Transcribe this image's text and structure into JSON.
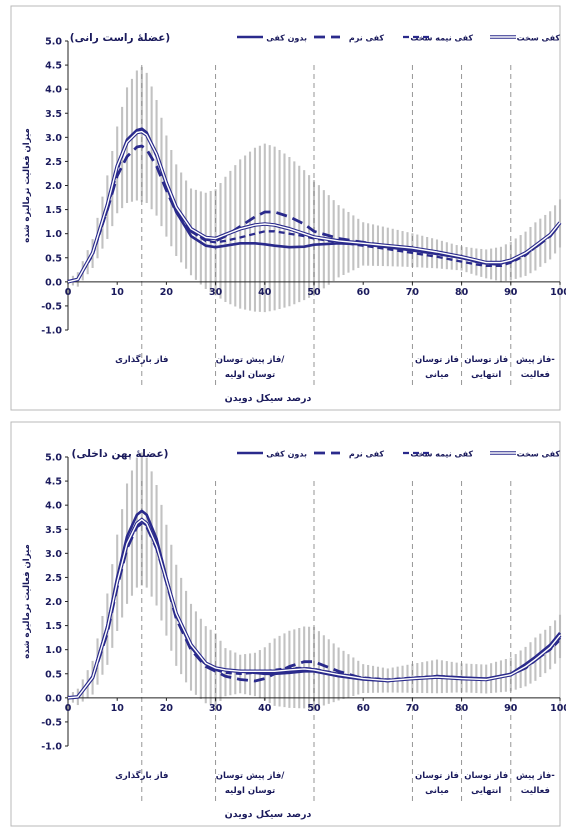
{
  "colors": {
    "series": "#2a2a8c",
    "errorbar": "#b3b3b3",
    "phase_divider": "#8a8a8a",
    "text": "#1a1a5c"
  },
  "chart_data": [
    {
      "type": "line",
      "title": "(عضلهٔ راست رانی)",
      "xlabel": "درصد سیکل دویدن",
      "ylabel": "میزان فعالیت نرمالیزه شده",
      "xlim": [
        0,
        100
      ],
      "ylim": [
        -1.0,
        5.0
      ],
      "x_ticks": [
        "0",
        "10",
        "20",
        "30",
        "40",
        "50",
        "60",
        "70",
        "80",
        "90",
        "100"
      ],
      "y_ticks": [
        "5.0",
        "4.5",
        "4.0",
        "3.5",
        "3.0",
        "2.5",
        "2.0",
        "1.5",
        "1.0",
        "0.5",
        "0.0",
        "-0.5",
        "-1.0"
      ],
      "phase_dividers_x": [
        15,
        30,
        50,
        70,
        80,
        90
      ],
      "phases": [
        {
          "lines": [
            "فاز بارگذاری"
          ],
          "x": 15
        },
        {
          "lines": [
            "فاز پیش توسان/",
            "توسان اولیه"
          ],
          "x": 37
        },
        {
          "lines": [
            "فاز توسان",
            "میانی"
          ],
          "x": 75
        },
        {
          "lines": [
            "فاز توسان",
            "انتهایی"
          ],
          "x": 85
        },
        {
          "lines": [
            "فاز پیش-",
            "فعالیت"
          ],
          "x": 95
        }
      ],
      "legend": [
        "کفی سخت",
        "کفی نیمه سخت",
        "کفی نرم",
        "بدون کفی"
      ],
      "series": [
        {
          "name": "بدون کفی",
          "style": "thick",
          "x": [
            0,
            2,
            5,
            8,
            10,
            12,
            14,
            15,
            16,
            18,
            20,
            22,
            25,
            28,
            30,
            32,
            35,
            38,
            40,
            42,
            45,
            48,
            50,
            55,
            60,
            65,
            70,
            75,
            80,
            83,
            85,
            88,
            90,
            93,
            95,
            98,
            100
          ],
          "y": [
            0,
            0.05,
            0.6,
            1.6,
            2.4,
            2.95,
            3.15,
            3.18,
            3.1,
            2.65,
            2.0,
            1.45,
            0.95,
            0.75,
            0.72,
            0.75,
            0.8,
            0.8,
            0.78,
            0.75,
            0.72,
            0.73,
            0.77,
            0.8,
            0.78,
            0.72,
            0.65,
            0.58,
            0.5,
            0.42,
            0.38,
            0.38,
            0.45,
            0.6,
            0.75,
            0.98,
            1.22
          ]
        },
        {
          "name": "کفی نرم",
          "style": "dashed",
          "x": [
            0,
            2,
            5,
            8,
            10,
            12,
            14,
            15,
            16,
            18,
            20,
            22,
            25,
            28,
            30,
            32,
            35,
            38,
            40,
            42,
            45,
            48,
            50,
            55,
            60,
            65,
            70,
            75,
            80,
            83,
            85,
            88,
            90,
            93,
            95,
            98,
            100
          ],
          "y": [
            0,
            0.05,
            0.6,
            1.5,
            2.2,
            2.6,
            2.8,
            2.82,
            2.75,
            2.4,
            1.9,
            1.45,
            1.05,
            0.88,
            0.85,
            0.95,
            1.15,
            1.35,
            1.45,
            1.45,
            1.35,
            1.2,
            1.05,
            0.9,
            0.82,
            0.75,
            0.68,
            0.6,
            0.5,
            0.42,
            0.38,
            0.36,
            0.42,
            0.58,
            0.72,
            0.95,
            1.2
          ]
        },
        {
          "name": "کفی نیمه سخت",
          "style": "dashed2",
          "x": [
            0,
            2,
            5,
            8,
            10,
            12,
            14,
            15,
            16,
            18,
            20,
            22,
            25,
            28,
            30,
            32,
            35,
            38,
            40,
            42,
            45,
            48,
            50,
            55,
            60,
            65,
            70,
            75,
            80,
            83,
            85,
            88,
            90,
            93,
            95,
            98,
            100
          ],
          "y": [
            0,
            0.05,
            0.55,
            1.5,
            2.3,
            2.9,
            3.1,
            3.12,
            3.05,
            2.6,
            2.0,
            1.5,
            1.05,
            0.85,
            0.82,
            0.85,
            0.92,
            1.0,
            1.05,
            1.05,
            1.0,
            0.95,
            0.9,
            0.82,
            0.75,
            0.68,
            0.6,
            0.52,
            0.42,
            0.36,
            0.33,
            0.33,
            0.4,
            0.55,
            0.72,
            0.95,
            1.2
          ]
        },
        {
          "name": "کفی سخت",
          "style": "double",
          "x": [
            0,
            2,
            5,
            8,
            10,
            12,
            14,
            15,
            16,
            18,
            20,
            22,
            25,
            28,
            30,
            32,
            35,
            38,
            40,
            42,
            45,
            48,
            50,
            55,
            60,
            65,
            70,
            75,
            80,
            83,
            85,
            88,
            90,
            93,
            95,
            98,
            100
          ],
          "y": [
            0,
            0.05,
            0.6,
            1.6,
            2.4,
            2.9,
            3.1,
            3.12,
            3.05,
            2.65,
            2.05,
            1.55,
            1.1,
            0.92,
            0.9,
            0.98,
            1.1,
            1.18,
            1.2,
            1.18,
            1.1,
            1.0,
            0.93,
            0.85,
            0.8,
            0.75,
            0.7,
            0.62,
            0.52,
            0.45,
            0.4,
            0.4,
            0.45,
            0.6,
            0.75,
            0.98,
            1.23
          ]
        }
      ],
      "error_band": {
        "x": [
          0,
          5,
          10,
          12,
          14,
          15,
          16,
          18,
          20,
          22,
          25,
          28,
          30,
          32,
          35,
          38,
          40,
          42,
          45,
          48,
          50,
          55,
          60,
          65,
          70,
          75,
          80,
          85,
          90,
          95,
          100
        ],
        "sd": [
          0.05,
          0.3,
          0.9,
          1.2,
          1.35,
          1.4,
          1.35,
          1.2,
          1.05,
          0.95,
          0.9,
          1.0,
          1.1,
          1.3,
          1.55,
          1.7,
          1.75,
          1.7,
          1.55,
          1.35,
          1.2,
          0.75,
          0.45,
          0.4,
          0.35,
          0.3,
          0.25,
          0.3,
          0.4,
          0.5,
          0.5
        ]
      }
    },
    {
      "type": "line",
      "title": "(عضلهٔ پهن داخلی)",
      "xlabel": "درصد سیکل دویدن",
      "ylabel": "میزان فعالیت نرمالیزه شده",
      "xlim": [
        0,
        100
      ],
      "ylim": [
        -1.0,
        5.0
      ],
      "x_ticks": [
        "0",
        "10",
        "20",
        "30",
        "40",
        "50",
        "60",
        "70",
        "80",
        "90",
        "100"
      ],
      "y_ticks": [
        "5.0",
        "4.5",
        "4.0",
        "3.5",
        "3.0",
        "2.5",
        "2.0",
        "1.5",
        "1.0",
        "0.5",
        "0.0",
        "-0.5",
        "-1.0"
      ],
      "phase_dividers_x": [
        15,
        30,
        50,
        70,
        80,
        90
      ],
      "phases": [
        {
          "lines": [
            "فاز بارگذاری"
          ],
          "x": 15
        },
        {
          "lines": [
            "فاز پیش توسان/",
            "توسان اولیه"
          ],
          "x": 37
        },
        {
          "lines": [
            "فاز توسان",
            "میانی"
          ],
          "x": 75
        },
        {
          "lines": [
            "فاز توسان",
            "انتهایی"
          ],
          "x": 85
        },
        {
          "lines": [
            "فاز پیش-",
            "فعالیت"
          ],
          "x": 95
        }
      ],
      "legend": [
        "کفی سخت",
        "کفی نیمه سخت",
        "کفی نرم",
        "بدون کفی"
      ],
      "series": [
        {
          "name": "بدون کفی",
          "style": "thick",
          "x": [
            0,
            2,
            5,
            8,
            10,
            12,
            14,
            15,
            16,
            18,
            20,
            22,
            25,
            28,
            30,
            32,
            35,
            38,
            40,
            42,
            45,
            48,
            50,
            55,
            60,
            65,
            70,
            75,
            80,
            85,
            90,
            93,
            95,
            98,
            100
          ],
          "y": [
            0,
            0.02,
            0.45,
            1.5,
            2.5,
            3.35,
            3.8,
            3.88,
            3.8,
            3.3,
            2.5,
            1.75,
            1.05,
            0.7,
            0.6,
            0.58,
            0.55,
            0.52,
            0.5,
            0.5,
            0.52,
            0.55,
            0.55,
            0.45,
            0.38,
            0.35,
            0.4,
            0.45,
            0.42,
            0.4,
            0.5,
            0.7,
            0.85,
            1.1,
            1.35
          ]
        },
        {
          "name": "کفی نرم",
          "style": "dashed",
          "x": [
            0,
            2,
            5,
            8,
            10,
            12,
            14,
            15,
            16,
            18,
            20,
            22,
            25,
            28,
            30,
            32,
            35,
            38,
            40,
            42,
            45,
            48,
            50,
            55,
            60,
            65,
            70,
            75,
            80,
            85,
            90,
            93,
            95,
            98,
            100
          ],
          "y": [
            0,
            0.02,
            0.4,
            1.35,
            2.3,
            3.1,
            3.55,
            3.62,
            3.55,
            3.1,
            2.4,
            1.65,
            1.0,
            0.65,
            0.55,
            0.45,
            0.38,
            0.35,
            0.4,
            0.5,
            0.65,
            0.75,
            0.75,
            0.55,
            0.4,
            0.35,
            0.4,
            0.45,
            0.42,
            0.38,
            0.48,
            0.62,
            0.78,
            1.02,
            1.25
          ]
        },
        {
          "name": "کفی نیمه سخت",
          "style": "dashed2",
          "x": [
            0,
            2,
            5,
            8,
            10,
            12,
            14,
            15,
            16,
            18,
            20,
            22,
            25,
            28,
            30,
            32,
            35,
            38,
            40,
            42,
            45,
            48,
            50,
            55,
            60,
            65,
            70,
            75,
            80,
            85,
            90,
            93,
            95,
            98,
            100
          ],
          "y": [
            0,
            0.02,
            0.4,
            1.4,
            2.35,
            3.15,
            3.58,
            3.65,
            3.58,
            3.12,
            2.42,
            1.7,
            1.05,
            0.68,
            0.58,
            0.52,
            0.5,
            0.52,
            0.55,
            0.58,
            0.62,
            0.62,
            0.6,
            0.5,
            0.42,
            0.38,
            0.42,
            0.45,
            0.42,
            0.4,
            0.48,
            0.62,
            0.78,
            1.0,
            1.2
          ]
        },
        {
          "name": "کفی سخت",
          "style": "double",
          "x": [
            0,
            2,
            5,
            8,
            10,
            12,
            14,
            15,
            16,
            18,
            20,
            22,
            25,
            28,
            30,
            32,
            35,
            38,
            40,
            42,
            45,
            48,
            50,
            55,
            60,
            65,
            70,
            75,
            80,
            85,
            90,
            93,
            95,
            98,
            100
          ],
          "y": [
            0,
            0.02,
            0.42,
            1.45,
            2.4,
            3.2,
            3.62,
            3.7,
            3.62,
            3.15,
            2.45,
            1.75,
            1.1,
            0.72,
            0.62,
            0.58,
            0.55,
            0.55,
            0.55,
            0.55,
            0.58,
            0.6,
            0.58,
            0.48,
            0.4,
            0.36,
            0.4,
            0.43,
            0.4,
            0.38,
            0.48,
            0.65,
            0.8,
            1.05,
            1.3
          ]
        }
      ],
      "error_band": {
        "x": [
          0,
          5,
          10,
          12,
          14,
          15,
          16,
          18,
          20,
          22,
          25,
          28,
          30,
          32,
          35,
          38,
          40,
          42,
          45,
          48,
          50,
          55,
          60,
          65,
          70,
          75,
          80,
          85,
          90,
          95,
          100
        ],
        "sd": [
          0.05,
          0.35,
          1.0,
          1.25,
          1.35,
          1.38,
          1.35,
          1.25,
          1.15,
          1.05,
          0.9,
          0.8,
          0.75,
          0.5,
          0.4,
          0.45,
          0.55,
          0.7,
          0.8,
          0.85,
          0.85,
          0.55,
          0.3,
          0.25,
          0.3,
          0.35,
          0.3,
          0.3,
          0.35,
          0.45,
          0.45
        ]
      }
    }
  ]
}
